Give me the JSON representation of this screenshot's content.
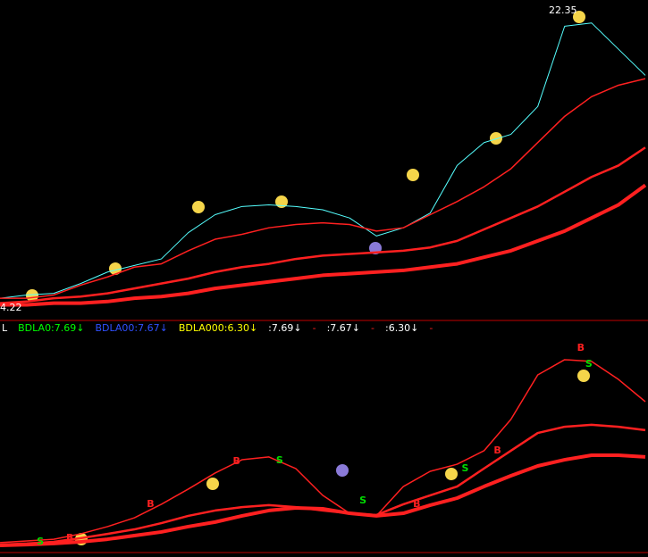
{
  "chart_data": [
    {
      "type": "line",
      "x": [
        0,
        1,
        2,
        3,
        4,
        5,
        6,
        7,
        8,
        9,
        10,
        11,
        12,
        13,
        14,
        15,
        16,
        17,
        18,
        19,
        20,
        21,
        22,
        23,
        24
      ],
      "xlim": [
        0,
        24
      ],
      "ylim": [
        3.5,
        23
      ],
      "high_label": 22.35,
      "low_label": 4.22,
      "series": [
        {
          "color": "#55ffff",
          "width": 1,
          "values": [
            4.8,
            5.0,
            5.1,
            5.7,
            6.4,
            6.8,
            7.2,
            8.8,
            9.9,
            10.4,
            10.5,
            10.4,
            10.2,
            9.7,
            8.6,
            9.1,
            10.0,
            12.9,
            14.3,
            14.8,
            16.5,
            21.4,
            21.6,
            20.0,
            18.4
          ]
        },
        {
          "color": "#ff2020",
          "width": 1.5,
          "values": [
            4.8,
            4.8,
            5.0,
            5.6,
            6.1,
            6.7,
            6.9,
            7.7,
            8.4,
            8.7,
            9.1,
            9.3,
            9.4,
            9.3,
            8.9,
            9.1,
            9.9,
            10.7,
            11.6,
            12.7,
            14.3,
            15.9,
            17.1,
            17.8,
            18.2
          ]
        },
        {
          "color": "#ff2020",
          "width": 2.5,
          "values": [
            4.5,
            4.6,
            4.8,
            4.9,
            5.1,
            5.4,
            5.7,
            6.0,
            6.4,
            6.7,
            6.9,
            7.2,
            7.4,
            7.5,
            7.6,
            7.7,
            7.9,
            8.3,
            9.0,
            9.7,
            10.4,
            11.3,
            12.2,
            12.9,
            14.0
          ]
        },
        {
          "color": "#ff2020",
          "width": 4,
          "values": [
            4.4,
            4.4,
            4.5,
            4.5,
            4.6,
            4.8,
            4.9,
            5.1,
            5.4,
            5.6,
            5.8,
            6.0,
            6.2,
            6.3,
            6.4,
            6.5,
            6.7,
            6.9,
            7.3,
            7.7,
            8.3,
            8.9,
            9.7,
            10.5,
            11.7
          ]
        }
      ]
    },
    {
      "type": "line",
      "x": [
        0,
        1,
        2,
        3,
        4,
        5,
        6,
        7,
        8,
        9,
        10,
        11,
        12,
        13,
        14,
        15,
        16,
        17,
        18,
        19,
        20,
        21,
        22,
        23,
        24
      ],
      "xlim": [
        0,
        24
      ],
      "ylim": [
        0,
        100
      ],
      "series": [
        {
          "color": "#ff2020",
          "width": 1.5,
          "values": [
            4.2,
            5,
            5.8,
            8.3,
            11.7,
            15.8,
            22.1,
            29.2,
            36.7,
            42.9,
            44.2,
            38.8,
            26.3,
            17.9,
            16.7,
            30.4,
            37.5,
            40.8,
            47.1,
            61.7,
            82.5,
            89.6,
            88.8,
            80.4,
            70.0
          ]
        },
        {
          "color": "#ff2020",
          "width": 2.5,
          "values": [
            3.3,
            3.8,
            4.6,
            6.3,
            8.3,
            10.4,
            13.3,
            16.7,
            19.2,
            20.8,
            21.7,
            20.8,
            19.2,
            17.9,
            17.1,
            22.1,
            26.3,
            30.4,
            38.8,
            47.1,
            55.4,
            58.3,
            59.2,
            58.3,
            56.7
          ]
        },
        {
          "color": "#ff2020",
          "width": 4,
          "values": [
            2.9,
            3.3,
            3.8,
            4.6,
            5.8,
            7.5,
            9.2,
            11.7,
            13.8,
            16.7,
            19.2,
            20.4,
            20.0,
            17.9,
            16.7,
            17.9,
            21.7,
            25,
            30.4,
            35.4,
            40,
            42.9,
            45,
            45,
            44.2
          ]
        }
      ],
      "signals": [
        {
          "label": "S",
          "color": "#00dd00",
          "x": 1.5,
          "y": 4.6
        },
        {
          "label": "B",
          "color": "#ff2020",
          "x": 2.6,
          "y": 6.3
        },
        {
          "label": "B",
          "color": "#ff2020",
          "x": 5.6,
          "y": 22.1
        },
        {
          "label": "B",
          "color": "#ff2020",
          "x": 8.8,
          "y": 42.1
        },
        {
          "label": "S",
          "color": "#00dd00",
          "x": 10.4,
          "y": 42.5
        },
        {
          "label": "S",
          "color": "#00dd00",
          "x": 13.5,
          "y": 23.8
        },
        {
          "label": "B",
          "color": "#ff2020",
          "x": 15.5,
          "y": 22.1
        },
        {
          "label": "S",
          "color": "#00dd00",
          "x": 17.3,
          "y": 38.8
        },
        {
          "label": "B",
          "color": "#ff2020",
          "x": 18.5,
          "y": 47.1
        },
        {
          "label": "B",
          "color": "#ff2020",
          "x": 21.6,
          "y": 95
        },
        {
          "label": "S",
          "color": "#00dd00",
          "x": 21.9,
          "y": 87.5
        }
      ]
    }
  ],
  "indicator_bar": [
    {
      "text": "L",
      "color": "#ffffff"
    },
    {
      "text": "BDLA0:7.69↓",
      "color": "#00ff00"
    },
    {
      "text": "BDLA00:7.67↓",
      "color": "#3050ff"
    },
    {
      "text": "BDLA000:6.30↓",
      "color": "#ffff00"
    },
    {
      "text": ":7.69↓",
      "color": "#ffffff"
    },
    {
      "text": "-",
      "color": "#ff2020"
    },
    {
      "text": ":7.67↓",
      "color": "#ffffff"
    },
    {
      "text": "-",
      "color": "#ff2020"
    },
    {
      "text": ":6.30↓",
      "color": "#ffffff"
    },
    {
      "text": "-",
      "color": "#ff2020"
    }
  ]
}
